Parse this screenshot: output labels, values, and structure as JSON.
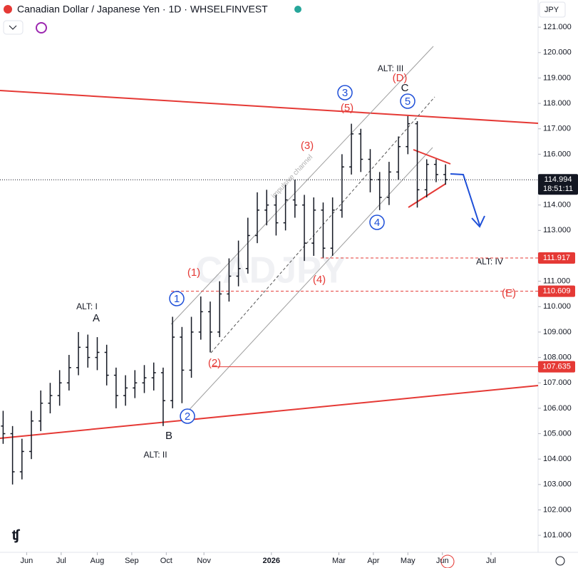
{
  "header": {
    "title": "Canadian Dollar / Japanese Yen · 1D · WHSELFINVEST",
    "currency": "JPY"
  },
  "chart_data": {
    "type": "ohlc",
    "watermark": "CADJPY",
    "channel_label": "impulsive channel",
    "color": "#131722",
    "x": [
      2,
      8,
      14,
      20,
      26,
      32,
      38,
      44,
      50,
      56,
      62,
      68,
      74,
      80,
      86,
      92,
      98,
      104,
      110,
      116,
      122,
      128,
      134,
      140,
      146,
      152,
      158,
      164,
      170,
      176,
      182,
      188,
      194,
      200,
      206,
      212,
      218,
      224,
      230,
      236,
      242,
      248,
      254,
      260,
      266,
      272,
      278,
      284
    ],
    "open": [
      105.3,
      105.0,
      103.5,
      104.3,
      105.5,
      106.2,
      106.5,
      107.0,
      107.6,
      108.4,
      108.0,
      108.2,
      107.3,
      106.5,
      106.8,
      107.0,
      107.2,
      107.4,
      106.3,
      108.8,
      107.5,
      109.0,
      109.8,
      109.0,
      110.5,
      111.2,
      111.5,
      112.8,
      113.8,
      114.0,
      113.3,
      114.2,
      114.0,
      112.5,
      113.8,
      112.3,
      113.8,
      115.5,
      116.8,
      115.8,
      115.0,
      114.3,
      115.3,
      116.3,
      117.2,
      114.6,
      115.6,
      115.2
    ],
    "high": [
      105.9,
      105.3,
      104.8,
      105.9,
      106.7,
      107.0,
      107.5,
      108.1,
      109.0,
      108.9,
      108.8,
      108.5,
      107.6,
      107.3,
      107.5,
      107.7,
      107.8,
      107.6,
      109.6,
      109.2,
      109.6,
      110.4,
      110.2,
      111.0,
      111.9,
      112.6,
      113.5,
      114.5,
      114.6,
      114.4,
      114.8,
      115.0,
      114.4,
      114.3,
      114.1,
      114.3,
      116.0,
      117.2,
      117.0,
      116.2,
      115.3,
      115.7,
      116.7,
      117.5,
      117.3,
      115.8,
      115.8,
      115.6
    ],
    "low": [
      104.6,
      103.0,
      103.2,
      104.0,
      105.1,
      105.8,
      106.1,
      106.7,
      107.3,
      107.6,
      107.5,
      106.9,
      106.0,
      106.1,
      106.4,
      106.6,
      106.7,
      105.3,
      106.0,
      106.2,
      107.2,
      108.7,
      108.2,
      108.8,
      110.2,
      110.8,
      111.3,
      112.5,
      113.2,
      112.8,
      113.0,
      113.5,
      111.8,
      112.0,
      111.9,
      112.0,
      113.5,
      115.2,
      115.3,
      114.5,
      113.8,
      114.0,
      115.0,
      116.0,
      113.9,
      114.3,
      114.9,
      114.8
    ],
    "close": [
      105.0,
      103.5,
      104.3,
      105.5,
      106.2,
      106.5,
      107.0,
      107.6,
      108.4,
      108.0,
      108.2,
      107.3,
      106.5,
      106.8,
      107.0,
      107.2,
      107.4,
      106.3,
      108.8,
      107.5,
      109.0,
      109.8,
      109.0,
      110.5,
      111.2,
      111.5,
      112.8,
      113.8,
      114.0,
      113.3,
      114.2,
      114.0,
      112.5,
      113.8,
      112.3,
      113.8,
      115.5,
      116.8,
      115.8,
      115.0,
      114.3,
      115.3,
      116.3,
      117.2,
      114.6,
      115.6,
      115.2,
      115.0
    ],
    "xlim": [
      0,
      343
    ],
    "xticks": [
      {
        "value": 17,
        "label": "Jun"
      },
      {
        "value": 39,
        "label": "Jul"
      },
      {
        "value": 62,
        "label": "Aug"
      },
      {
        "value": 84,
        "label": "Sep"
      },
      {
        "value": 106,
        "label": "Oct"
      },
      {
        "value": 130,
        "label": "Nov"
      },
      {
        "value": 173,
        "label": "2026"
      },
      {
        "value": 216,
        "label": "Mar"
      },
      {
        "value": 238,
        "label": "Apr"
      },
      {
        "value": 260,
        "label": "May"
      },
      {
        "value": 282,
        "label": "Jun"
      },
      {
        "value": 313,
        "label": "Jul"
      }
    ],
    "ylim": [
      100.33,
      122.07
    ],
    "yticks": [
      {
        "value": 101,
        "label": "101.000"
      },
      {
        "value": 102,
        "label": "102.000"
      },
      {
        "value": 103,
        "label": "103.000"
      },
      {
        "value": 104,
        "label": "104.000"
      },
      {
        "value": 105,
        "label": "105.000"
      },
      {
        "value": 106,
        "label": "106.000"
      },
      {
        "value": 107,
        "label": "107.000"
      },
      {
        "value": 108,
        "label": "108.000"
      },
      {
        "value": 109,
        "label": "109.000"
      },
      {
        "value": 110,
        "label": "110.000"
      },
      {
        "value": 111,
        "label": "111.000"
      },
      {
        "value": 112,
        "label": "112.000"
      },
      {
        "value": 113,
        "label": "113.000"
      },
      {
        "value": 114,
        "label": "114.000"
      },
      {
        "value": 115,
        "label": "115.000"
      },
      {
        "value": 116,
        "label": "116.000"
      },
      {
        "value": 117,
        "label": "117.000"
      },
      {
        "value": 118,
        "label": "118.000"
      },
      {
        "value": 119,
        "label": "119.000"
      },
      {
        "value": 120,
        "label": "120.000"
      },
      {
        "value": 121,
        "label": "121.000"
      }
    ],
    "current_price": 114.994,
    "countdown": "18:51:11",
    "levels": [
      111.917,
      110.609,
      107.635
    ],
    "annotations": [
      {
        "text": "ALT: III",
        "style": "black"
      },
      {
        "text": "(D)",
        "style": "red"
      },
      {
        "text": "C",
        "style": "black"
      },
      {
        "text": "5",
        "style": "wave"
      },
      {
        "text": "3",
        "style": "wave"
      },
      {
        "text": "(5)",
        "style": "red"
      },
      {
        "text": "(3)",
        "style": "red"
      },
      {
        "text": "(1)",
        "style": "red"
      },
      {
        "text": "1",
        "style": "wave"
      },
      {
        "text": "(4)",
        "style": "red"
      },
      {
        "text": "4",
        "style": "wave"
      },
      {
        "text": "ALT: IV",
        "style": "black"
      },
      {
        "text": "(E)",
        "style": "red"
      },
      {
        "text": "(2)",
        "style": "red"
      },
      {
        "text": "ALT: I",
        "style": "black"
      },
      {
        "text": "A",
        "style": "black"
      },
      {
        "text": "2",
        "style": "wave"
      },
      {
        "text": "B",
        "style": "black"
      },
      {
        "text": "ALT: II",
        "style": "black"
      }
    ]
  }
}
